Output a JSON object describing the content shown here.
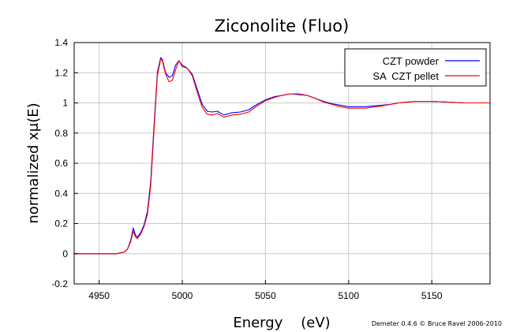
{
  "chart_data": {
    "type": "line",
    "title": "Ziconolite (Fluo)",
    "xlabel": "Energy    (eV)",
    "ylabel": "normalized xμ(E)",
    "credit": "Demeter 0.4.6 © Bruce Ravel 2006-2010",
    "xlim": [
      4935,
      5185
    ],
    "ylim": [
      -0.2,
      1.4
    ],
    "xticks": [
      4950,
      5000,
      5050,
      5100,
      5150
    ],
    "xtick_labels": [
      "4950",
      "5000",
      "5050",
      "5100",
      "5150"
    ],
    "yticks": [
      -0.2,
      0,
      0.2,
      0.4,
      0.6,
      0.8,
      1,
      1.2,
      1.4
    ],
    "ytick_labels": [
      "-0.2",
      "0",
      "0.2",
      "0.4",
      "0.6",
      "0.8",
      "1",
      "1.2",
      "1.4"
    ],
    "grid": true,
    "legend_position": "top-right",
    "series": [
      {
        "name": "CZT powder",
        "color": "#0000ff",
        "x": [
          4935,
          4950,
          4960,
          4965,
          4967,
          4969,
          4970.5,
          4972,
          4973,
          4975,
          4977,
          4979,
          4981,
          4983,
          4985,
          4987,
          4988,
          4990,
          4992,
          4994,
          4996,
          4998,
          5000,
          5003,
          5006,
          5009,
          5012,
          5015,
          5018,
          5021,
          5025,
          5030,
          5035,
          5040,
          5045,
          5050,
          5055,
          5060,
          5065,
          5070,
          5075,
          5080,
          5085,
          5090,
          5095,
          5100,
          5110,
          5120,
          5125,
          5130,
          5140,
          5150,
          5160,
          5170,
          5185
        ],
        "y": [
          0.0,
          0.0,
          0.0,
          0.01,
          0.03,
          0.09,
          0.17,
          0.12,
          0.11,
          0.14,
          0.19,
          0.28,
          0.48,
          0.85,
          1.2,
          1.3,
          1.29,
          1.2,
          1.17,
          1.18,
          1.25,
          1.28,
          1.25,
          1.23,
          1.19,
          1.09,
          0.99,
          0.945,
          0.94,
          0.945,
          0.92,
          0.935,
          0.94,
          0.955,
          0.99,
          1.02,
          1.04,
          1.05,
          1.06,
          1.055,
          1.05,
          1.03,
          1.01,
          0.995,
          0.985,
          0.975,
          0.975,
          0.985,
          0.99,
          1.0,
          1.01,
          1.01,
          1.005,
          1.0,
          1.0
        ]
      },
      {
        "name": "SA  CZT pellet",
        "color": "#ff0000",
        "x": [
          4935,
          4950,
          4960,
          4965,
          4967,
          4969,
          4970.5,
          4972,
          4973,
          4975,
          4977,
          4979,
          4981,
          4983,
          4985,
          4987,
          4988,
          4990,
          4992,
          4994,
          4996,
          4998,
          5000,
          5003,
          5006,
          5009,
          5012,
          5015,
          5018,
          5021,
          5025,
          5030,
          5035,
          5040,
          5045,
          5050,
          5055,
          5060,
          5065,
          5070,
          5075,
          5080,
          5085,
          5090,
          5095,
          5100,
          5110,
          5120,
          5125,
          5130,
          5140,
          5150,
          5160,
          5170,
          5185
        ],
        "y": [
          0.0,
          0.0,
          0.0,
          0.01,
          0.03,
          0.08,
          0.15,
          0.11,
          0.1,
          0.13,
          0.18,
          0.26,
          0.45,
          0.82,
          1.18,
          1.29,
          1.28,
          1.19,
          1.14,
          1.15,
          1.22,
          1.28,
          1.24,
          1.23,
          1.18,
          1.07,
          0.97,
          0.925,
          0.92,
          0.93,
          0.905,
          0.92,
          0.925,
          0.94,
          0.98,
          1.015,
          1.035,
          1.05,
          1.06,
          1.06,
          1.05,
          1.03,
          1.005,
          0.99,
          0.975,
          0.965,
          0.965,
          0.98,
          0.99,
          1.0,
          1.01,
          1.01,
          1.005,
          1.0,
          1.0
        ]
      }
    ]
  }
}
